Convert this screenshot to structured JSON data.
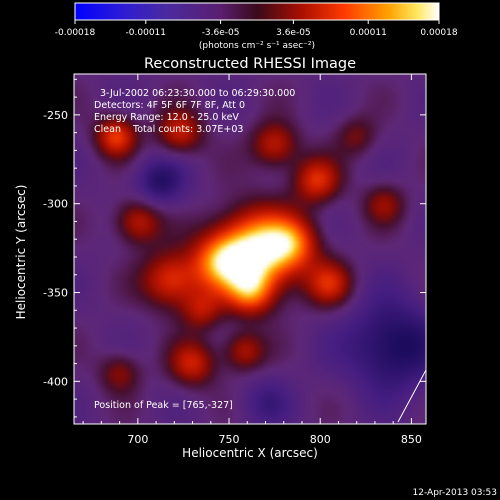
{
  "chart_data": {
    "type": "heatmap",
    "title": "Reconstructed RHESSI Image",
    "xlabel": "Heliocentric X (arcsec)",
    "ylabel": "Heliocentric Y (arcsec)",
    "xlim": [
      665,
      858
    ],
    "ylim": [
      -424,
      -227
    ],
    "xticks": [
      700,
      750,
      800,
      850
    ],
    "yticks": [
      -250,
      -300,
      -350,
      -400
    ],
    "colorbar": {
      "units": "(photons cm⁻² s⁻¹ asec⁻²)",
      "range": [
        -0.00018,
        0.00018
      ],
      "tick_values": [
        -0.00018,
        -0.00011,
        -3.6e-05,
        3.6e-05,
        0.00011,
        0.00018
      ],
      "tick_labels": [
        "-0.00018",
        "-0.00011",
        "-3.6e-05",
        "3.6e-05",
        "0.00011",
        "0.00018"
      ]
    },
    "annotations": [
      "3-Jul-2002 06:23:30.000 to 06:29:30.000",
      "Detectors: 4F 5F 6F 7F 8F, Att 0",
      "Energy Range: 12.0 - 25.0 keV",
      "Clean    Total counts: 3.07E+03",
      "Position of Peak = [765,-327]"
    ],
    "peak": {
      "x": 765,
      "y": -327,
      "value": 0.00018
    },
    "sources": [
      {
        "x": 765,
        "y": -327,
        "amp": 1.0,
        "sigma": 16
      },
      {
        "x": 745,
        "y": -333,
        "amp": 0.55,
        "sigma": 11
      },
      {
        "x": 785,
        "y": -322,
        "amp": 0.45,
        "sigma": 10
      },
      {
        "x": 718,
        "y": -343,
        "amp": 0.55,
        "sigma": 11
      },
      {
        "x": 700,
        "y": -310,
        "amp": 0.45,
        "sigma": 9
      },
      {
        "x": 688,
        "y": -262,
        "amp": 0.55,
        "sigma": 8
      },
      {
        "x": 723,
        "y": -260,
        "amp": 0.45,
        "sigma": 9
      },
      {
        "x": 775,
        "y": -267,
        "amp": 0.45,
        "sigma": 9
      },
      {
        "x": 798,
        "y": -287,
        "amp": 0.5,
        "sigma": 9
      },
      {
        "x": 805,
        "y": -345,
        "amp": 0.45,
        "sigma": 9
      },
      {
        "x": 762,
        "y": -350,
        "amp": 0.5,
        "sigma": 9
      },
      {
        "x": 735,
        "y": -360,
        "amp": 0.35,
        "sigma": 8
      },
      {
        "x": 730,
        "y": -390,
        "amp": 0.45,
        "sigma": 9
      },
      {
        "x": 758,
        "y": -383,
        "amp": 0.4,
        "sigma": 8
      },
      {
        "x": 690,
        "y": -395,
        "amp": 0.3,
        "sigma": 8
      },
      {
        "x": 835,
        "y": -300,
        "amp": 0.3,
        "sigma": 8
      },
      {
        "x": 820,
        "y": -262,
        "amp": 0.25,
        "sigma": 8
      },
      {
        "x": 840,
        "y": -380,
        "amp": -0.45,
        "sigma": 18
      },
      {
        "x": 712,
        "y": -288,
        "amp": -0.35,
        "sigma": 10
      },
      {
        "x": 770,
        "y": -412,
        "amp": -0.2,
        "sigma": 10
      }
    ]
  },
  "footer": {
    "timestamp": "12-Apr-2013 03:53"
  },
  "colors": {
    "background": "#000000",
    "foreground": "#ffffff",
    "colormap": "rhessi-blue-purple-red-yellow-white"
  }
}
